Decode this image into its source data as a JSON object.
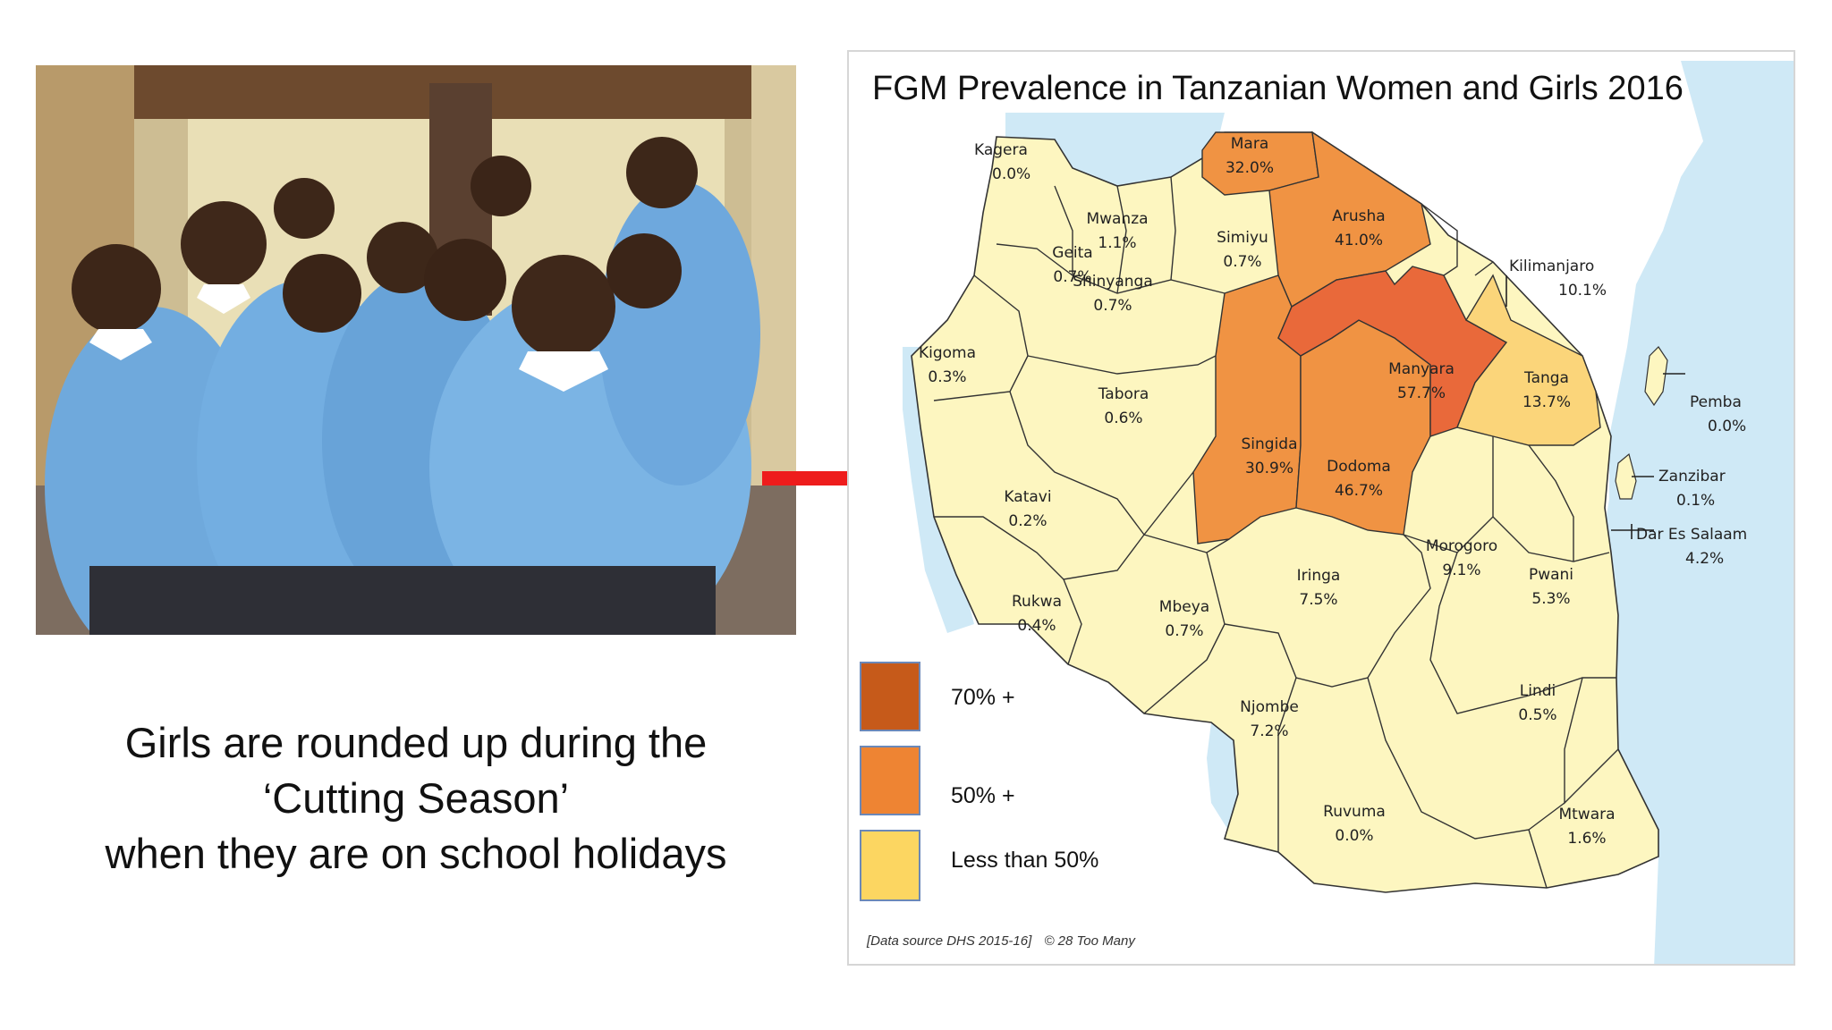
{
  "caption": {
    "line1": "Girls are rounded up during the",
    "line2": "‘Cutting Season’",
    "line3": "when they are on school holidays"
  },
  "map": {
    "title": "FGM Prevalence in Tanzanian Women and Girls 2016",
    "legend": [
      {
        "label": "70% +",
        "color": "#c65a1a"
      },
      {
        "label": "50% +",
        "color": "#ee8433"
      },
      {
        "label": "Less than 50%",
        "color": "#fcd661"
      }
    ],
    "source": "[Data source DHS 2015-16]",
    "copyright": "© 28 Too Many",
    "regions": [
      {
        "name": "Kagera",
        "value": "0.0%"
      },
      {
        "name": "Mara",
        "value": "32.0%"
      },
      {
        "name": "Mwanza",
        "value": "1.1%"
      },
      {
        "name": "Simiyu",
        "value": "0.7%"
      },
      {
        "name": "Geita",
        "value": "0.7%"
      },
      {
        "name": "Shinyanga",
        "value": "0.7%"
      },
      {
        "name": "Arusha",
        "value": "41.0%"
      },
      {
        "name": "Kilimanjaro",
        "value": "10.1%"
      },
      {
        "name": "Kigoma",
        "value": "0.3%"
      },
      {
        "name": "Tabora",
        "value": "0.6%"
      },
      {
        "name": "Manyara",
        "value": "57.7%"
      },
      {
        "name": "Tanga",
        "value": "13.7%"
      },
      {
        "name": "Pemba",
        "value": "0.0%"
      },
      {
        "name": "Singida",
        "value": "30.9%"
      },
      {
        "name": "Dodoma",
        "value": "46.7%"
      },
      {
        "name": "Zanzibar",
        "value": "0.1%"
      },
      {
        "name": "Katavi",
        "value": "0.2%"
      },
      {
        "name": "Dar Es Salaam",
        "value": "4.2%"
      },
      {
        "name": "Morogoro",
        "value": "9.1%"
      },
      {
        "name": "Iringa",
        "value": "7.5%"
      },
      {
        "name": "Pwani",
        "value": "5.3%"
      },
      {
        "name": "Rukwa",
        "value": "0.4%"
      },
      {
        "name": "Mbeya",
        "value": "0.7%"
      },
      {
        "name": "Lindi",
        "value": "0.5%"
      },
      {
        "name": "Njombe",
        "value": "7.2%"
      },
      {
        "name": "Ruvuma",
        "value": "0.0%"
      },
      {
        "name": "Mtwara",
        "value": "1.6%"
      }
    ]
  },
  "colors": {
    "land_pale": "#fdf6c0",
    "mid_orange": "#f09343",
    "dark_orange": "#e9693a",
    "tanga_yellow": "#fbd57a",
    "water": "#cfe9f6",
    "border": "#333333",
    "arrow": "#ee1c1c"
  }
}
